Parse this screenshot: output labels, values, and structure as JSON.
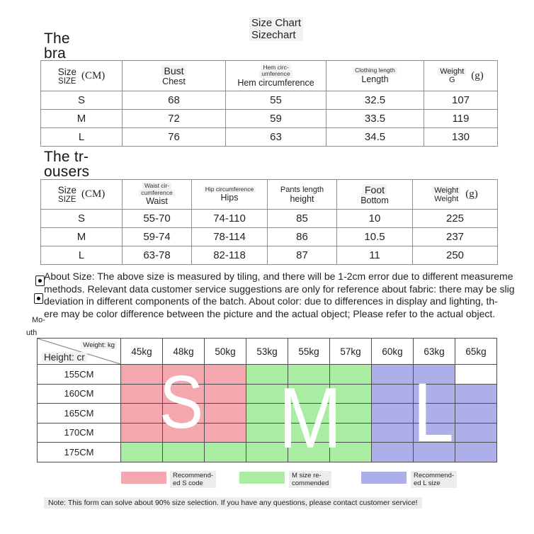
{
  "title": {
    "line1": "Size Chart",
    "line2": "Sizechart"
  },
  "bra_section": {
    "heading": {
      "line1": "The",
      "line2": "bra"
    },
    "table": {
      "size_col": {
        "top": "Size",
        "bottom": "SIZE",
        "unit": "(CM)"
      },
      "bust_col": {
        "label": "Bust",
        "sub": "Chest"
      },
      "hem_col": {
        "tiny1": "Hem circ-",
        "tiny2": "umference",
        "sub": "Hem circumference"
      },
      "length_col": {
        "tiny1": "Clothing length",
        "sub": "Length"
      },
      "weight_col": {
        "top": "Weight",
        "bottom": "G",
        "unit": "(g)"
      },
      "rows": [
        {
          "size": "S",
          "bust": "68",
          "hem": "55",
          "length": "32.5",
          "weight": "107"
        },
        {
          "size": "M",
          "bust": "72",
          "hem": "59",
          "length": "33.5",
          "weight": "119"
        },
        {
          "size": "L",
          "bust": "76",
          "hem": "63",
          "length": "34.5",
          "weight": "130"
        }
      ]
    }
  },
  "trousers_section": {
    "heading": {
      "line1": "The tr-",
      "line2": "ousers"
    },
    "table": {
      "size_col": {
        "top": "Size",
        "bottom": "SIZE",
        "unit": "(CM)"
      },
      "waist_col": {
        "tiny1": "Waist cir-",
        "tiny2": "cumference",
        "sub": "Waist"
      },
      "hip_col": {
        "tiny1": "Hip circumference",
        "sub": "Hips"
      },
      "pants_col": {
        "label": "Pants length",
        "sub": "height"
      },
      "foot_col": {
        "label": "Foot",
        "sub": "Bottom"
      },
      "weight_col": {
        "top": "Weight",
        "bottom": "Weight",
        "unit": "(g)"
      },
      "rows": [
        {
          "size": "S",
          "waist": "55-70",
          "hip": "74-110",
          "pants": "85",
          "foot": "10",
          "weight": "225"
        },
        {
          "size": "M",
          "waist": "59-74",
          "hip": "78-114",
          "pants": "86",
          "foot": "10.5",
          "weight": "237"
        },
        {
          "size": "L",
          "waist": "63-78",
          "hip": "82-118",
          "pants": "87",
          "foot": "11",
          "weight": "250"
        }
      ]
    }
  },
  "about_notes": {
    "lines": [
      "About Size: The above size is measured by tiling, and there will be 1-2cm error due to different measureme",
      "methods. Relevant data customer service suggestions are only for reference about fabric: there may be slig",
      "deviation in different components of the batch. About color: due to differences in display and lighting, th-",
      "ere may be color difference between the picture and the actual object; Please refer to the actual object."
    ],
    "fragment_line1": "Mo-",
    "fragment_line2": "uth"
  },
  "size_matrix": {
    "corner": {
      "weight_label": "Weight: kg",
      "height_label": "Height: cr"
    },
    "weight_columns": [
      "45kg",
      "48kg",
      "50kg",
      "53kg",
      "55kg",
      "57kg",
      "60kg",
      "63kg",
      "65kg"
    ],
    "height_rows": [
      "155CM",
      "160CM",
      "165CM",
      "170CM",
      "175CM"
    ],
    "cells": [
      [
        "S",
        "S",
        "S",
        "M",
        "M",
        "M",
        "L",
        "L",
        "W"
      ],
      [
        "S",
        "S",
        "S",
        "M",
        "M",
        "M",
        "L",
        "L",
        "L"
      ],
      [
        "S",
        "S",
        "S",
        "M",
        "M",
        "M",
        "L",
        "L",
        "L"
      ],
      [
        "S",
        "S",
        "S",
        "M",
        "M",
        "M",
        "L",
        "L",
        "L"
      ],
      [
        "M",
        "M",
        "M",
        "M",
        "M",
        "M",
        "L",
        "L",
        "L"
      ]
    ],
    "zone_colors": {
      "S": "#F4A7AE",
      "M": "#A8EDA2",
      "L": "#AEAEE9",
      "W": "#FFFFFF"
    },
    "overlay_letters": [
      {
        "letter": "S"
      },
      {
        "letter": "M"
      },
      {
        "letter": "L"
      }
    ]
  },
  "legend": {
    "items": [
      {
        "color": "#F4A7AE",
        "line1": "Recommend-",
        "line2": "ed S code"
      },
      {
        "color": "#A8EDA2",
        "line1": "M size re-",
        "line2": "commended"
      },
      {
        "color": "#AEAEE9",
        "line1": "Recommend-",
        "line2": "ed L size"
      }
    ]
  },
  "footer": {
    "note": "Note: This form can solve about 90% size selection. If you have any questions, please contact customer service!"
  }
}
